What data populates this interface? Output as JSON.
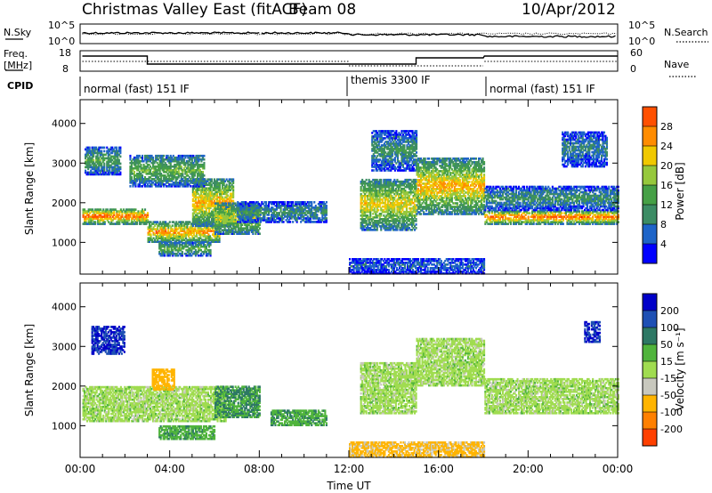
{
  "header": {
    "title": "Christmas Valley East (fitACF)",
    "beam": "Beam 08",
    "date": "10/Apr/2012"
  },
  "status_panel": {
    "nsky_label": "N.Sky",
    "nsky_ticks": [
      "10^5",
      "10^0"
    ],
    "nsearch_label": "N.Search",
    "nsearch_ticks": [
      "10^5",
      "10^0"
    ],
    "freq_label_1": "Freq.",
    "freq_label_2": "[MHz]",
    "freq_ticks": [
      "18",
      "8"
    ],
    "nave_label": "Nave",
    "nave_ticks": [
      "60",
      "0"
    ],
    "cpid_label": "CPID",
    "cpid_segments": [
      {
        "label": "normal (fast) 151 IF",
        "start_hour": 0.1
      },
      {
        "label": "themis 3300 IF",
        "start_hour": 12.0
      },
      {
        "label": "normal (fast) 151 IF",
        "start_hour": 18.05
      }
    ]
  },
  "colors": {
    "power_scale": [
      "#0000ff",
      "#1e64c8",
      "#3c8c64",
      "#46a046",
      "#96c83c",
      "#f0c800",
      "#ff8c00",
      "#ff5000",
      "#ff0000"
    ],
    "velocity_scale": [
      "#0000c8",
      "#1e50b4",
      "#2d7864",
      "#50b43c",
      "#a0dc50",
      "#c8c8be",
      "#ffb400",
      "#ff8000",
      "#ff4000",
      "#e60000"
    ]
  },
  "chart_data": [
    {
      "type": "heatmap",
      "name": "power",
      "ylabel": "Slant Range [km]",
      "xlabel": "",
      "xlim": [
        0,
        24
      ],
      "ylim": [
        200,
        4600
      ],
      "ytick_labels": [
        "1000",
        "2000",
        "3000",
        "4000"
      ],
      "colorbar_label": "Power [dB]",
      "colorbar_range": [
        0,
        32
      ],
      "colorbar_ticks": [
        "4",
        "8",
        "12",
        "16",
        "20",
        "24",
        "28"
      ],
      "echo_bands": [
        {
          "t0": 0.1,
          "t1": 3.0,
          "r0": 1450,
          "r1": 1850,
          "peak": 26
        },
        {
          "t0": 3.0,
          "t1": 6.2,
          "r0": 1000,
          "r1": 1500,
          "peak": 24
        },
        {
          "t0": 5.0,
          "t1": 6.8,
          "r0": 1400,
          "r1": 2600,
          "peak": 22
        },
        {
          "t0": 2.2,
          "t1": 5.5,
          "r0": 2400,
          "r1": 3200,
          "peak": 14
        },
        {
          "t0": 0.2,
          "t1": 1.8,
          "r0": 2700,
          "r1": 3400,
          "peak": 12
        },
        {
          "t0": 3.5,
          "t1": 5.8,
          "r0": 650,
          "r1": 1000,
          "peak": 14
        },
        {
          "t0": 6.0,
          "t1": 8.0,
          "r0": 1200,
          "r1": 2000,
          "peak": 18
        },
        {
          "t0": 7.0,
          "t1": 11.0,
          "r0": 1500,
          "r1": 2000,
          "peak": 10
        },
        {
          "t0": 12.5,
          "t1": 15.0,
          "r0": 1300,
          "r1": 2600,
          "peak": 20
        },
        {
          "t0": 13.0,
          "t1": 15.0,
          "r0": 2800,
          "r1": 3800,
          "peak": 10
        },
        {
          "t0": 15.0,
          "t1": 18.0,
          "r0": 1700,
          "r1": 3100,
          "peak": 22
        },
        {
          "t0": 18.05,
          "t1": 24.0,
          "r0": 1450,
          "r1": 1800,
          "peak": 26
        },
        {
          "t0": 18.05,
          "t1": 24.0,
          "r0": 1800,
          "r1": 2400,
          "peak": 10
        },
        {
          "t0": 21.5,
          "t1": 23.5,
          "r0": 2900,
          "r1": 3800,
          "peak": 8
        },
        {
          "t0": 12.0,
          "t1": 18.0,
          "r0": 200,
          "r1": 600,
          "peak": 6
        }
      ]
    },
    {
      "type": "heatmap",
      "name": "velocity",
      "ylabel": "Slant Range [km]",
      "xlabel": "Time UT",
      "xlim": [
        0,
        24
      ],
      "ylim": [
        200,
        4600
      ],
      "ytick_labels": [
        "1000",
        "2000",
        "3000",
        "4000"
      ],
      "xtick_labels": [
        "00:00",
        "04:00",
        "08:00",
        "12:00",
        "16:00",
        "20:00",
        "00:00"
      ],
      "colorbar_label": "Velocity [m s⁻¹]",
      "colorbar_range": [
        -250,
        250
      ],
      "colorbar_ticks": [
        "200",
        "100",
        "50",
        "15",
        "-15",
        "-50",
        "-100",
        "-200"
      ],
      "echo_bands": [
        {
          "t0": 0.1,
          "t1": 6.5,
          "r0": 1100,
          "r1": 2000,
          "v": 0
        },
        {
          "t0": 0.5,
          "t1": 2.0,
          "r0": 2800,
          "r1": 3500,
          "v": 200
        },
        {
          "t0": 3.2,
          "t1": 4.2,
          "r0": 1900,
          "r1": 2400,
          "v": -80
        },
        {
          "t0": 3.5,
          "t1": 6.0,
          "r0": 650,
          "r1": 1000,
          "v": 40
        },
        {
          "t0": 6.0,
          "t1": 8.0,
          "r0": 1200,
          "r1": 2000,
          "v": 50
        },
        {
          "t0": 8.5,
          "t1": 11.0,
          "r0": 1000,
          "r1": 1400,
          "v": 40
        },
        {
          "t0": 12.5,
          "t1": 15.0,
          "r0": 1300,
          "r1": 2600,
          "v": 0
        },
        {
          "t0": 15.0,
          "t1": 18.0,
          "r0": 2000,
          "r1": 3200,
          "v": 0
        },
        {
          "t0": 18.05,
          "t1": 24.0,
          "r0": 1300,
          "r1": 2200,
          "v": 0
        },
        {
          "t0": 22.5,
          "t1": 23.2,
          "r0": 3100,
          "r1": 3600,
          "v": 200
        },
        {
          "t0": 12.0,
          "t1": 18.0,
          "r0": 200,
          "r1": 600,
          "v": -60
        }
      ]
    }
  ]
}
